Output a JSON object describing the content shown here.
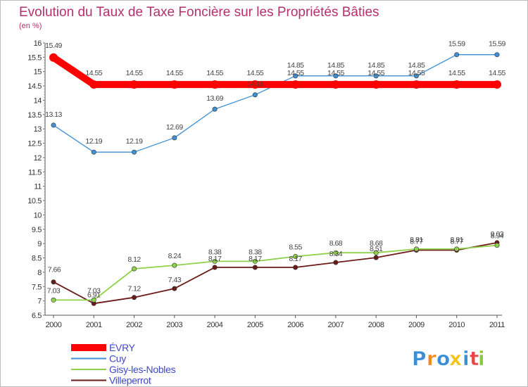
{
  "chart_data": {
    "type": "line",
    "title": "Evolution du Taux de Taxe Foncière sur les Propriétés Bâties",
    "subtitle": "(en %)",
    "xlabel": "",
    "ylabel": "(en %)",
    "ylim": [
      6.5,
      16
    ],
    "y_ticks": [
      "6.5",
      "7",
      "7.5",
      "8",
      "8.5",
      "9",
      "9.5",
      "10",
      "10.5",
      "11",
      "11.5",
      "12",
      "12.5",
      "13",
      "13.5",
      "14",
      "14.5",
      "15",
      "15.5",
      "16"
    ],
    "x": [
      "2000",
      "2001",
      "2002",
      "2003",
      "2004",
      "2005",
      "2006",
      "2007",
      "2008",
      "2009",
      "2010",
      "2011"
    ],
    "series": [
      {
        "name": "ÉVRY",
        "color": "#ff0000",
        "values": [
          15.49,
          14.55,
          14.55,
          14.55,
          14.55,
          14.55,
          14.55,
          14.55,
          14.55,
          14.55,
          14.55,
          14.55
        ],
        "labels": [
          "15.49",
          "14.55",
          "14.55",
          "14.55",
          "14.55",
          "14.55",
          "14.55",
          "14.55",
          "14.55",
          "14.55",
          "14.55",
          "14.55"
        ]
      },
      {
        "name": "Cuy",
        "color": "#3e8fd4",
        "values": [
          13.13,
          12.19,
          12.19,
          12.69,
          13.69,
          14.19,
          14.85,
          14.85,
          14.85,
          14.85,
          15.59,
          15.59
        ],
        "labels": [
          "13.13",
          "12.19",
          "12.19",
          "12.69",
          "13.69",
          "14.19",
          "14.85",
          "14.85",
          "14.85",
          "14.85",
          "15.59",
          "15.59"
        ]
      },
      {
        "name": "Gisy-les-Nobles",
        "color": "#8fd14a",
        "values": [
          7.03,
          7.03,
          8.12,
          8.24,
          8.38,
          8.38,
          8.55,
          8.68,
          8.68,
          8.81,
          8.81,
          8.94
        ],
        "labels": [
          "7.03",
          "7.03",
          "8.12",
          "8.24",
          "8.38",
          "8.38",
          "8.55",
          "8.68",
          "8.68",
          "8.81",
          "8.81",
          "8.94"
        ]
      },
      {
        "name": "Villeperrot",
        "color": "#6b1a1a",
        "values": [
          7.66,
          6.91,
          7.12,
          7.43,
          8.17,
          8.17,
          8.17,
          8.34,
          8.51,
          8.77,
          8.77,
          9.03
        ],
        "labels": [
          "7.66",
          "6.91",
          "7.12",
          "7.43",
          "8.17",
          "8.17",
          "8.17",
          "8.34",
          "8.51",
          "8.77",
          "8.77",
          "9.03"
        ]
      }
    ],
    "legend_position": "bottom-left",
    "grid": false
  },
  "logo": {
    "text": "Proxiti",
    "letters": [
      {
        "ch": "P",
        "color": "#3a8fd6"
      },
      {
        "ch": "r",
        "color": "#f08a1c"
      },
      {
        "ch": "o",
        "color": "#3a8fd6"
      },
      {
        "ch": "x",
        "color": "#f0c419"
      },
      {
        "ch": "i",
        "color": "#3a8fd6"
      },
      {
        "ch": "t",
        "color": "#e84545"
      },
      {
        "ch": "i",
        "color": "#8fc63f"
      }
    ]
  }
}
